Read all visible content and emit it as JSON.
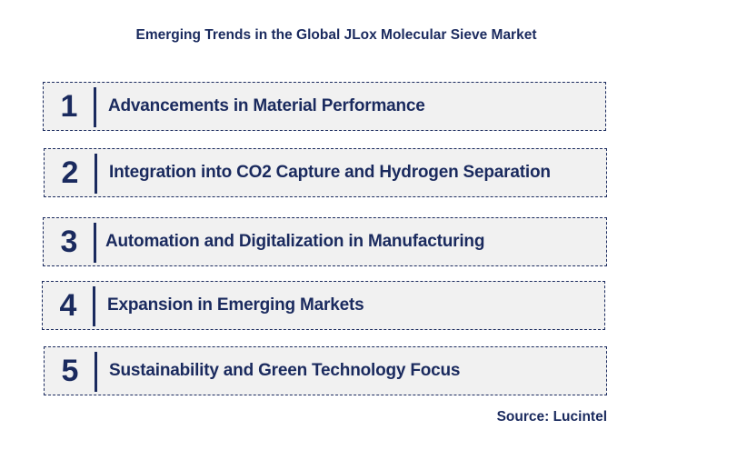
{
  "title": "Emerging Trends in the Global JLox Molecular Sieve Market",
  "trends": [
    {
      "number": "1",
      "label": "Advancements in Material Performance"
    },
    {
      "number": "2",
      "label": "Integration into CO2 Capture and Hydrogen Separation"
    },
    {
      "number": "3",
      "label": "Automation and Digitalization in Manufacturing"
    },
    {
      "number": "4",
      "label": "Expansion in Emerging Markets"
    },
    {
      "number": "5",
      "label": "Sustainability and Green Technology Focus"
    }
  ],
  "source": "Source: Lucintel",
  "colors": {
    "text": "#1a2a5e",
    "box_background": "#f1f1f1",
    "border": "#1a2a5e"
  }
}
